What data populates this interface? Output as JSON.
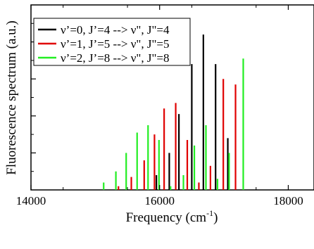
{
  "chart_data": {
    "type": "bar",
    "title": "",
    "xlabel": "Frequency (cm",
    "xlabel_sup": "-1",
    "xlabel_close": ")",
    "ylabel": "Fluorescence spectrum (a.u.)",
    "xlim": [
      14000,
      18400
    ],
    "ylim": [
      0,
      1.0
    ],
    "x_ticks": [
      14000,
      16000,
      18000
    ],
    "x_tick_labels": [
      "14000",
      "16000",
      "18000"
    ],
    "y_ticks": [
      0.2,
      0.4,
      0.6,
      0.8
    ],
    "grid": false,
    "legend_position": "top-left",
    "series": [
      {
        "name": "ν’=0, J’=4 --> ν\", J\"=4",
        "color": "#000000",
        "x": [
          15950,
          16150,
          16300,
          16500,
          16680,
          16870,
          17060
        ],
        "values": [
          0.08,
          0.2,
          0.41,
          0.68,
          0.84,
          0.68,
          0.28
        ]
      },
      {
        "name": "ν’=1, J’=5 --> ν\", J\"=5",
        "color": "#e00000",
        "x": [
          15360,
          15560,
          15760,
          15920,
          16070,
          16250,
          16430,
          16610,
          16790,
          16990,
          17180
        ],
        "values": [
          0.02,
          0.07,
          0.16,
          0.3,
          0.44,
          0.47,
          0.27,
          0.04,
          0.13,
          0.6,
          0.57
        ]
      },
      {
        "name": "ν’=2, J’=8 --> ν\", J\"=8",
        "color": "#22ee22",
        "x": [
          15130,
          15320,
          15480,
          15650,
          15820,
          15990,
          16170,
          16370,
          16540,
          16720,
          16900,
          17080,
          17300
        ],
        "values": [
          0.04,
          0.1,
          0.2,
          0.31,
          0.35,
          0.27,
          0.02,
          0.08,
          0.24,
          0.35,
          0.06,
          0.2,
          0.71
        ]
      }
    ]
  }
}
